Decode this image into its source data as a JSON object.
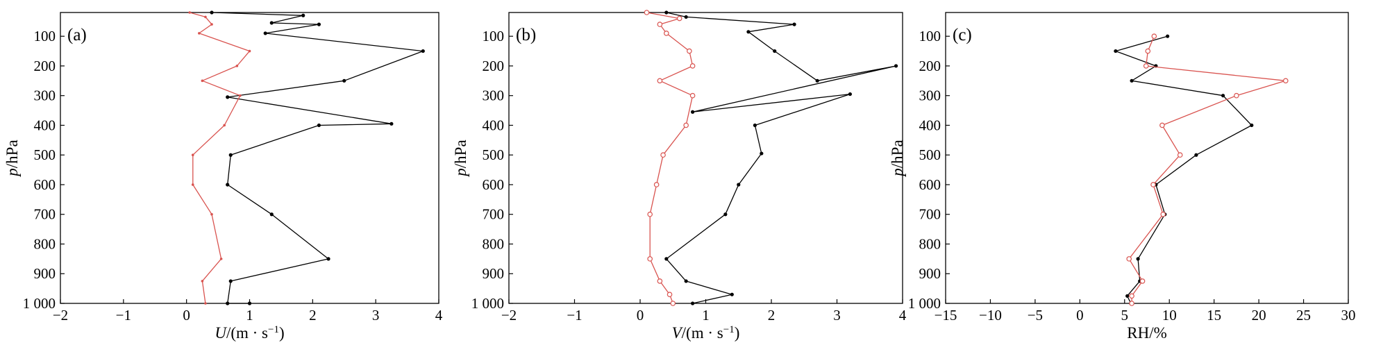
{
  "chart_data": [
    {
      "type": "line",
      "panel_label": "(a)",
      "xlabel_var": "U",
      "xlabel_unit": "/(m · s",
      "xlabel_exp": "−1",
      "xlabel_close": ")",
      "ylabel_var": "p",
      "ylabel_unit": "/hPa",
      "xlim": [
        -2,
        4
      ],
      "ylim": [
        1000,
        20
      ],
      "y_inverted": true,
      "grid": false,
      "xticks": [
        -2,
        -1,
        0,
        1,
        2,
        3,
        4
      ],
      "xtick_labels": [
        "−2",
        "−1",
        "0",
        "1",
        "2",
        "3",
        "4"
      ],
      "yticks": [
        100,
        200,
        300,
        400,
        500,
        600,
        700,
        800,
        900,
        1000
      ],
      "ytick_labels": [
        "100",
        "200",
        "300",
        "400",
        "500",
        "600",
        "700",
        "800",
        "900",
        "1 000"
      ],
      "series": [
        {
          "color": "#000000",
          "marker": "filled-dot",
          "points": [
            [
              0.4,
              20
            ],
            [
              1.85,
              30
            ],
            [
              1.35,
              55
            ],
            [
              2.1,
              60
            ],
            [
              1.25,
              90
            ],
            [
              3.75,
              150
            ],
            [
              2.5,
              250
            ],
            [
              0.65,
              305
            ],
            [
              3.25,
              395
            ],
            [
              2.1,
              400
            ],
            [
              0.7,
              500
            ],
            [
              0.65,
              600
            ],
            [
              1.35,
              700
            ],
            [
              2.25,
              850
            ],
            [
              0.7,
              925
            ],
            [
              0.65,
              1000
            ],
            [
              1.0,
              1000
            ]
          ]
        },
        {
          "color": "#d9534f",
          "marker": "small-dot",
          "points": [
            [
              0.05,
              20
            ],
            [
              0.3,
              35
            ],
            [
              0.4,
              60
            ],
            [
              0.2,
              90
            ],
            [
              1.0,
              150
            ],
            [
              0.8,
              200
            ],
            [
              0.25,
              250
            ],
            [
              0.85,
              300
            ],
            [
              0.6,
              400
            ],
            [
              0.1,
              500
            ],
            [
              0.1,
              600
            ],
            [
              0.4,
              700
            ],
            [
              0.55,
              850
            ],
            [
              0.25,
              925
            ],
            [
              0.3,
              1000
            ]
          ]
        }
      ]
    },
    {
      "type": "line",
      "panel_label": "(b)",
      "xlabel_var": "V",
      "xlabel_unit": "/(m · s",
      "xlabel_exp": "−1",
      "xlabel_close": ")",
      "ylabel_var": "p",
      "ylabel_unit": "/hPa",
      "xlim": [
        -2,
        4
      ],
      "ylim": [
        1000,
        20
      ],
      "y_inverted": true,
      "grid": false,
      "xticks": [
        -2,
        -1,
        0,
        1,
        2,
        3,
        4
      ],
      "xtick_labels": [
        "−2",
        "−1",
        "0",
        "1",
        "2",
        "3",
        "4"
      ],
      "yticks": [
        100,
        200,
        300,
        400,
        500,
        600,
        700,
        800,
        900,
        1000
      ],
      "ytick_labels": [
        "100",
        "200",
        "300",
        "400",
        "500",
        "600",
        "700",
        "800",
        "900",
        "1 000"
      ],
      "series": [
        {
          "color": "#000000",
          "marker": "filled-dot",
          "points": [
            [
              0.4,
              20
            ],
            [
              0.7,
              35
            ],
            [
              2.35,
              60
            ],
            [
              1.65,
              85
            ],
            [
              2.05,
              150
            ],
            [
              2.7,
              250
            ],
            [
              3.9,
              200
            ],
            [
              0.8,
              355
            ],
            [
              3.2,
              295
            ],
            [
              1.75,
              400
            ],
            [
              1.85,
              495
            ],
            [
              1.5,
              600
            ],
            [
              1.3,
              700
            ],
            [
              0.4,
              850
            ],
            [
              0.7,
              925
            ],
            [
              1.4,
              970
            ],
            [
              0.8,
              1000
            ]
          ]
        },
        {
          "color": "#d9534f",
          "marker": "open-circle",
          "points": [
            [
              0.1,
              20
            ],
            [
              0.6,
              40
            ],
            [
              0.3,
              60
            ],
            [
              0.4,
              90
            ],
            [
              0.75,
              150
            ],
            [
              0.8,
              200
            ],
            [
              0.3,
              250
            ],
            [
              0.8,
              300
            ],
            [
              0.7,
              400
            ],
            [
              0.35,
              500
            ],
            [
              0.25,
              600
            ],
            [
              0.15,
              700
            ],
            [
              0.15,
              850
            ],
            [
              0.3,
              925
            ],
            [
              0.45,
              970
            ],
            [
              0.5,
              1000
            ]
          ]
        }
      ]
    },
    {
      "type": "line",
      "panel_label": "(c)",
      "xlabel_var": "",
      "xlabel_unit": "RH/%",
      "xlabel_exp": "",
      "xlabel_close": "",
      "ylabel_var": "p",
      "ylabel_unit": "/hPa",
      "xlim": [
        -15,
        30
      ],
      "ylim": [
        1000,
        20
      ],
      "y_inverted": true,
      "grid": false,
      "xticks": [
        -15,
        -10,
        -5,
        0,
        5,
        10,
        15,
        20,
        25,
        30
      ],
      "xtick_labels": [
        "−15",
        "−10",
        "−5",
        "0",
        "5",
        "10",
        "15",
        "20",
        "25",
        "30"
      ],
      "yticks": [
        100,
        200,
        300,
        400,
        500,
        600,
        700,
        800,
        900,
        1000
      ],
      "ytick_labels": [
        "100",
        "200",
        "300",
        "400",
        "500",
        "600",
        "700",
        "800",
        "900",
        "1 000"
      ],
      "series": [
        {
          "color": "#000000",
          "marker": "filled-dot",
          "points": [
            [
              9.8,
              100
            ],
            [
              4.0,
              150
            ],
            [
              8.5,
              200
            ],
            [
              5.8,
              250
            ],
            [
              16.0,
              300
            ],
            [
              19.2,
              400
            ],
            [
              13.0,
              500
            ],
            [
              8.5,
              600
            ],
            [
              9.5,
              700
            ],
            [
              6.5,
              850
            ],
            [
              6.7,
              925
            ],
            [
              5.3,
              975
            ],
            [
              5.7,
              1000
            ]
          ]
        },
        {
          "color": "#d9534f",
          "marker": "open-circle",
          "points": [
            [
              8.3,
              100
            ],
            [
              7.6,
              150
            ],
            [
              7.4,
              200
            ],
            [
              23.0,
              250
            ],
            [
              17.5,
              300
            ],
            [
              9.2,
              400
            ],
            [
              11.2,
              500
            ],
            [
              8.2,
              600
            ],
            [
              9.3,
              700
            ],
            [
              5.5,
              850
            ],
            [
              7.0,
              925
            ],
            [
              5.8,
              975
            ],
            [
              5.8,
              1000
            ]
          ]
        }
      ]
    }
  ]
}
